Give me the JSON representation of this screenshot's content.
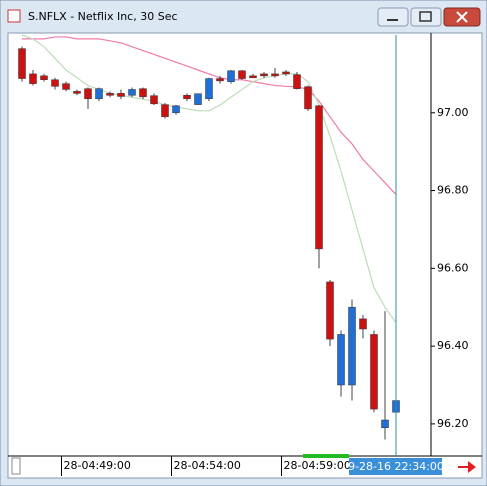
{
  "window": {
    "title": "S.NFLX - Netflix Inc, 30 Sec"
  },
  "chart_data": {
    "type": "candlestick",
    "categories": [
      null,
      null,
      null,
      null,
      "28-04:49:00",
      null,
      null,
      null,
      null,
      null,
      null,
      null,
      null,
      null,
      "28-04:54:00",
      null,
      null,
      null,
      null,
      null,
      null,
      null,
      null,
      null,
      "28-04:59:00",
      null,
      null,
      null,
      null,
      null,
      null,
      null,
      null,
      null,
      null
    ],
    "open": [
      97.165,
      97.1,
      97.095,
      97.085,
      97.075,
      97.055,
      97.062,
      97.036,
      97.05,
      97.05,
      97.045,
      97.062,
      97.044,
      97.021,
      97.0,
      97.045,
      97.021,
      97.036,
      97.088,
      97.08,
      97.108,
      97.095,
      97.1,
      97.1,
      97.105,
      97.098,
      97.067,
      97.018,
      96.565,
      96.3,
      96.3,
      96.47,
      96.43,
      96.19,
      96.23
    ],
    "high": [
      97.17,
      97.11,
      97.1,
      97.09,
      97.08,
      97.06,
      97.065,
      97.065,
      97.055,
      97.06,
      97.065,
      97.065,
      97.05,
      97.025,
      97.02,
      97.05,
      97.05,
      97.09,
      97.095,
      97.11,
      97.11,
      97.1,
      97.105,
      97.115,
      97.11,
      97.105,
      97.07,
      97.02,
      96.57,
      96.44,
      96.52,
      96.48,
      96.44,
      96.49,
      96.38
    ],
    "low": [
      97.08,
      97.07,
      97.08,
      97.06,
      97.055,
      97.045,
      97.01,
      97.03,
      97.04,
      97.035,
      97.04,
      97.035,
      97.02,
      96.985,
      96.995,
      97.03,
      97.02,
      97.03,
      97.075,
      97.075,
      97.085,
      97.09,
      97.09,
      97.09,
      97.095,
      97.06,
      97.005,
      96.6,
      96.4,
      96.27,
      96.26,
      96.42,
      96.23,
      96.16,
      96.2
    ],
    "close": [
      97.088,
      97.075,
      97.085,
      97.068,
      97.06,
      97.05,
      97.036,
      97.062,
      97.045,
      97.042,
      97.06,
      97.041,
      97.023,
      96.99,
      97.018,
      97.036,
      97.049,
      97.088,
      97.082,
      97.108,
      97.088,
      97.092,
      97.098,
      97.098,
      97.1,
      97.062,
      97.01,
      96.65,
      96.418,
      96.43,
      96.5,
      96.444,
      96.238,
      96.21,
      96.26
    ],
    "up_color": "#1f6fd6",
    "down_color": "#cc1111",
    "lines": [
      {
        "color": "#f07aa8",
        "values": [
          97.19,
          97.19,
          97.19,
          97.195,
          97.195,
          97.19,
          97.19,
          97.19,
          97.185,
          97.18,
          97.17,
          97.16,
          97.15,
          97.14,
          97.13,
          97.12,
          97.11,
          97.1,
          97.09,
          97.085,
          97.085,
          97.08,
          97.075,
          97.07,
          97.068,
          97.067,
          97.06,
          97.03,
          96.99,
          96.95,
          96.92,
          96.88,
          96.85,
          96.82,
          96.79
        ]
      },
      {
        "color": "#bddcb9",
        "values": [
          97.2,
          97.19,
          97.17,
          97.14,
          97.11,
          97.09,
          97.07,
          97.06,
          97.05,
          97.045,
          97.04,
          97.035,
          97.03,
          97.02,
          97.015,
          97.01,
          97.005,
          97.005,
          97.02,
          97.04,
          97.06,
          97.08,
          97.09,
          97.095,
          97.1,
          97.1,
          97.08,
          97.02,
          96.94,
          96.85,
          96.75,
          96.65,
          96.55,
          96.5,
          96.46
        ]
      }
    ],
    "ylim": [
      96.12,
      97.2
    ],
    "yticks": [
      {
        "value": 96.2,
        "label": "96.20"
      },
      {
        "value": 96.4,
        "label": "96.40"
      },
      {
        "value": 96.6,
        "label": "96.60"
      },
      {
        "value": 96.8,
        "label": "96.80"
      },
      {
        "value": 97,
        "label": "97.00"
      }
    ],
    "cursor_label": "9-28-16 22:34:00"
  }
}
